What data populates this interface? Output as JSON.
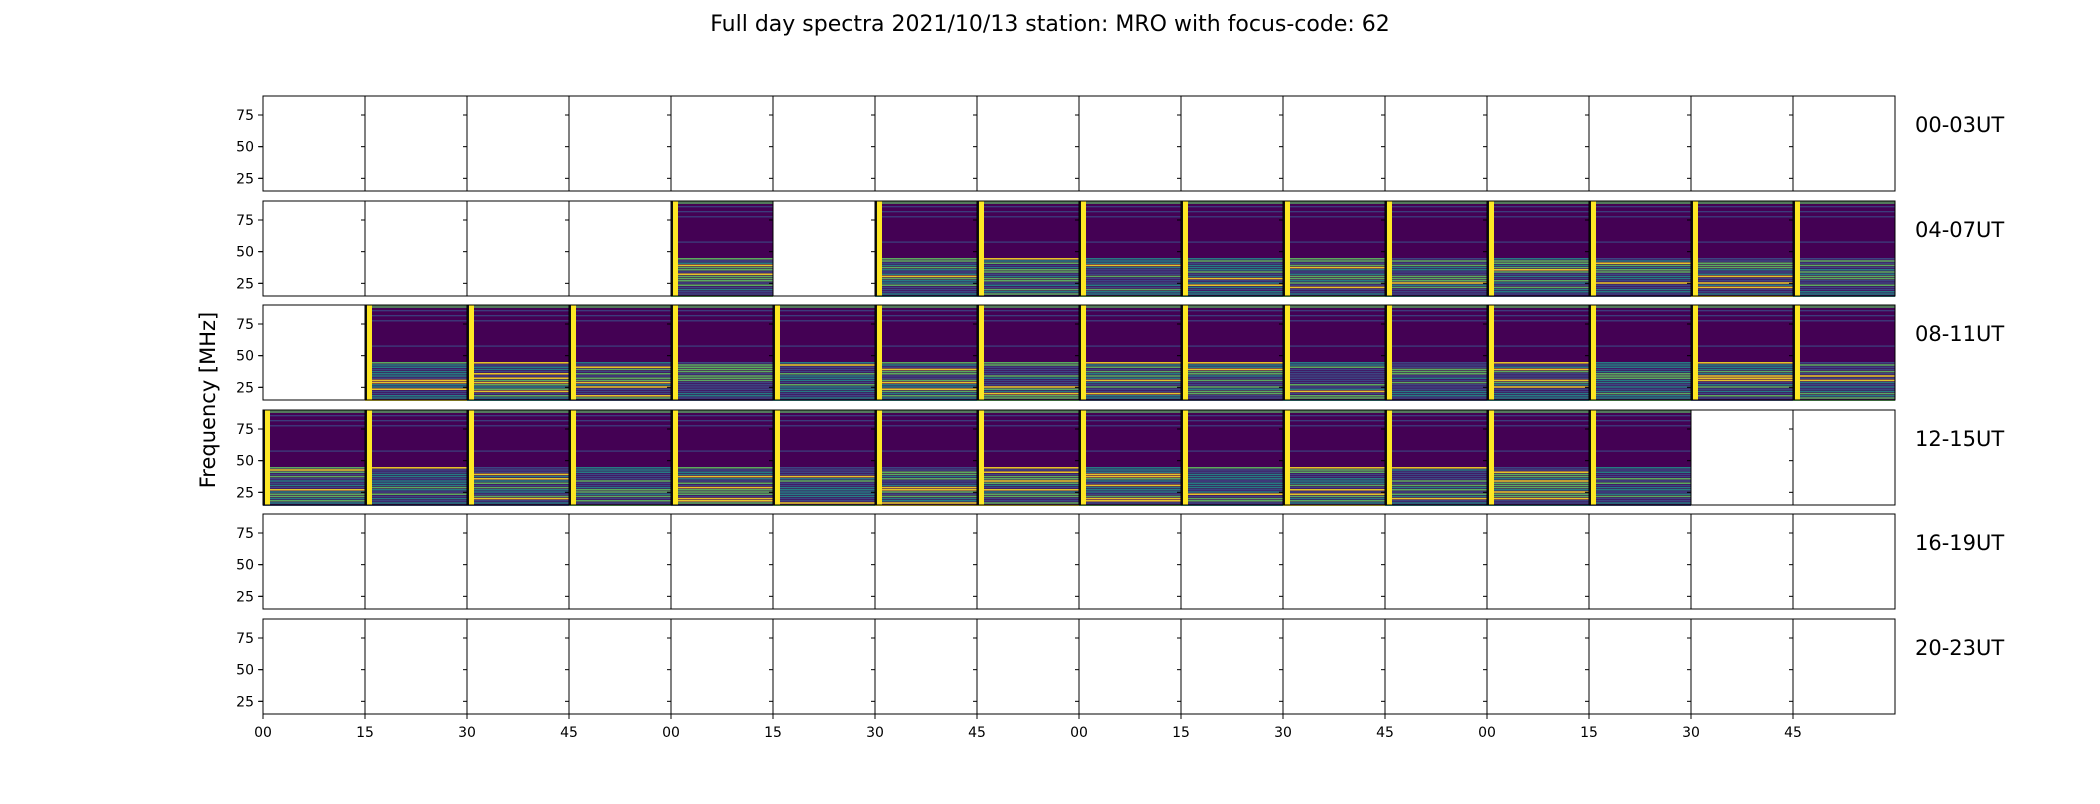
{
  "chart_data": {
    "type": "heatmap",
    "title": "Full day spectra 2021/10/13 station: MRO with focus-code: 62",
    "ylabel": "Frequency [MHz]",
    "xlabel": "",
    "y_ticks": [
      "25",
      "50",
      "75"
    ],
    "ylim": [
      15,
      90
    ],
    "x_ticks": [
      "00",
      "15",
      "30",
      "45",
      "00",
      "15",
      "30",
      "45",
      "00",
      "15",
      "30",
      "45",
      "00",
      "15",
      "30",
      "45"
    ],
    "grid": false,
    "colormap": [
      "#440154",
      "#3b528b",
      "#21918c",
      "#5ec962",
      "#fde725"
    ],
    "rows": [
      {
        "label": "00-03UT",
        "panels": [
          0,
          0,
          0,
          0,
          0,
          0,
          0,
          0,
          0,
          0,
          0,
          0,
          0,
          0,
          0,
          0
        ]
      },
      {
        "label": "04-07UT",
        "panels": [
          0,
          0,
          0,
          0,
          1,
          0,
          1,
          1,
          1,
          1,
          1,
          1,
          1,
          1,
          1,
          1
        ]
      },
      {
        "label": "08-11UT",
        "panels": [
          0,
          1,
          1,
          1,
          1,
          1,
          1,
          1,
          1,
          1,
          1,
          1,
          1,
          1,
          1,
          1
        ]
      },
      {
        "label": "12-15UT",
        "panels": [
          1,
          1,
          1,
          1,
          1,
          1,
          1,
          1,
          1,
          1,
          1,
          1,
          1,
          1,
          0,
          0
        ]
      },
      {
        "label": "16-19UT",
        "panels": [
          0,
          0,
          0,
          0,
          0,
          0,
          0,
          0,
          0,
          0,
          0,
          0,
          0,
          0,
          0,
          0
        ]
      },
      {
        "label": "20-23UT",
        "panels": [
          0,
          0,
          0,
          0,
          0,
          0,
          0,
          0,
          0,
          0,
          0,
          0,
          0,
          0,
          0,
          0
        ]
      }
    ]
  }
}
